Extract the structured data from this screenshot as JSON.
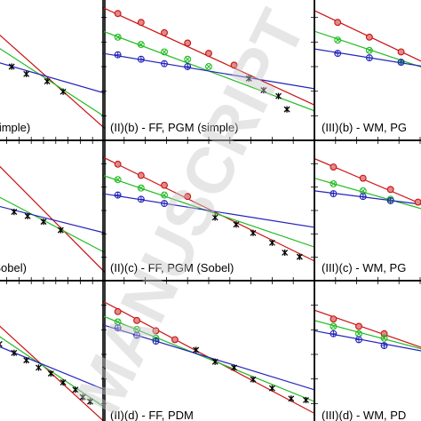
{
  "watermark": {
    "text": "MANUSCRIPT",
    "color": "#c8c8c8"
  },
  "colors": {
    "red": "#cc1111",
    "green": "#22bb22",
    "blue": "#2222bb",
    "black": "#000000"
  },
  "chart_data": [
    {
      "type": "line",
      "label": "(simple)",
      "log_scale": true,
      "xlim": [
        0,
        10
      ],
      "ylim": [
        0,
        10
      ],
      "series": [
        {
          "color": "red",
          "line": [
            [
              0,
              8.2
            ],
            [
              10,
              0.8
            ]
          ],
          "markers": []
        },
        {
          "color": "green",
          "line": [
            [
              0,
              7.0
            ],
            [
              10,
              1.6
            ]
          ],
          "markers": []
        },
        {
          "color": "blue",
          "line": [
            [
              0,
              5.6
            ],
            [
              10,
              3.2
            ]
          ],
          "markers": []
        },
        {
          "color": "black",
          "line": [],
          "markers": [
            [
              1.2,
              5.4
            ],
            [
              2.4,
              5.0
            ],
            [
              3.6,
              4.5
            ],
            [
              5.3,
              4.0
            ],
            [
              6.6,
              3.3
            ]
          ]
        }
      ]
    },
    {
      "type": "line",
      "label": "(II)(b) - FF, PGM (simple)",
      "log_scale": true,
      "xlim": [
        0,
        10
      ],
      "ylim": [
        0,
        10
      ],
      "series": [
        {
          "color": "red",
          "line": [
            [
              0,
              9.0
            ],
            [
              10,
              2.4
            ]
          ],
          "markers": [
            [
              0.7,
              8.6
            ],
            [
              1.8,
              8.0
            ],
            [
              2.9,
              7.3
            ],
            [
              4.0,
              6.6
            ],
            [
              5.0,
              5.9
            ],
            [
              6.2,
              5.1
            ]
          ]
        },
        {
          "color": "green",
          "line": [
            [
              0,
              7.4
            ],
            [
              10,
              2.0
            ]
          ],
          "markers": [
            [
              0.7,
              7.0
            ],
            [
              1.8,
              6.5
            ],
            [
              2.9,
              6.0
            ],
            [
              4.0,
              5.5
            ],
            [
              5.0,
              5.0
            ]
          ]
        },
        {
          "color": "blue",
          "line": [
            [
              0,
              5.9
            ],
            [
              10,
              3.5
            ]
          ],
          "markers": [
            [
              0.7,
              5.8
            ],
            [
              1.8,
              5.5
            ],
            [
              2.9,
              5.2
            ],
            [
              4.0,
              5.0
            ]
          ]
        },
        {
          "color": "black",
          "line": [],
          "markers": [
            [
              6.9,
              4.2
            ],
            [
              7.6,
              3.4
            ],
            [
              8.3,
              3.0
            ],
            [
              8.7,
              2.1
            ]
          ]
        }
      ]
    },
    {
      "type": "line",
      "label": "(III)(b) - WM, PG",
      "log_scale": true,
      "xlim": [
        0,
        10
      ],
      "ylim": [
        0,
        10
      ],
      "series": [
        {
          "color": "red",
          "line": [
            [
              0,
              8.8
            ],
            [
              10,
              2.0
            ]
          ],
          "markers": [
            [
              1.1,
              8.0
            ],
            [
              2.6,
              7.0
            ],
            [
              4.1,
              6.0
            ],
            [
              5.6,
              5.0
            ]
          ]
        },
        {
          "color": "green",
          "line": [
            [
              0,
              7.4
            ],
            [
              10,
              2.6
            ]
          ],
          "markers": [
            [
              1.1,
              6.8
            ],
            [
              2.6,
              6.1
            ],
            [
              4.1,
              5.3
            ]
          ]
        },
        {
          "color": "blue",
          "line": [
            [
              0,
              6.2
            ],
            [
              10,
              3.9
            ]
          ],
          "markers": [
            [
              1.1,
              5.9
            ],
            [
              2.6,
              5.6
            ],
            [
              4.1,
              5.3
            ]
          ]
        },
        {
          "color": "black",
          "line": [],
          "markers": []
        }
      ]
    },
    {
      "type": "line",
      "label": "(Sobel)",
      "log_scale": true,
      "xlim": [
        0,
        10
      ],
      "ylim": [
        0,
        10
      ],
      "series": [
        {
          "color": "red",
          "line": [
            [
              0,
              9.4
            ],
            [
              10,
              0.6
            ]
          ],
          "markers": []
        },
        {
          "color": "green",
          "line": [
            [
              0,
              6.6
            ],
            [
              10,
              2.0
            ]
          ],
          "markers": []
        },
        {
          "color": "blue",
          "line": [
            [
              0,
              5.6
            ],
            [
              10,
              3.4
            ]
          ],
          "markers": []
        },
        {
          "color": "black",
          "line": [],
          "markers": [
            [
              1.2,
              5.1
            ],
            [
              2.6,
              4.9
            ],
            [
              3.7,
              4.6
            ],
            [
              5.0,
              4.2
            ],
            [
              6.4,
              3.6
            ]
          ]
        }
      ]
    },
    {
      "type": "line",
      "label": "(II)(c) - FF, PGM (Sobel)",
      "log_scale": true,
      "xlim": [
        0,
        10
      ],
      "ylim": [
        0,
        10
      ],
      "series": [
        {
          "color": "red",
          "line": [
            [
              0,
              8.8
            ],
            [
              10,
              1.4
            ]
          ],
          "markers": [
            [
              0.7,
              8.3
            ],
            [
              1.8,
              7.5
            ],
            [
              2.9,
              6.8
            ],
            [
              4.0,
              6.0
            ]
          ]
        },
        {
          "color": "green",
          "line": [
            [
              0,
              7.5
            ],
            [
              10,
              2.4
            ]
          ],
          "markers": [
            [
              0.7,
              7.2
            ],
            [
              1.8,
              6.6
            ],
            [
              2.9,
              6.1
            ]
          ]
        },
        {
          "color": "blue",
          "line": [
            [
              0,
              6.2
            ],
            [
              10,
              3.8
            ]
          ],
          "markers": [
            [
              0.7,
              6.1
            ],
            [
              1.8,
              5.8
            ],
            [
              2.9,
              5.5
            ]
          ]
        },
        {
          "color": "black",
          "line": [],
          "markers": [
            [
              5.3,
              4.5
            ],
            [
              6.3,
              4.0
            ],
            [
              7.1,
              3.4
            ],
            [
              8.0,
              2.7
            ],
            [
              8.6,
              2.0
            ],
            [
              9.3,
              1.7
            ]
          ]
        }
      ]
    },
    {
      "type": "line",
      "label": "(III)(c) - WM, PG",
      "log_scale": true,
      "xlim": [
        0,
        10
      ],
      "ylim": [
        0,
        10
      ],
      "series": [
        {
          "color": "red",
          "line": [
            [
              0,
              8.7
            ],
            [
              10,
              2.3
            ]
          ],
          "markers": [
            [
              0.9,
              8.1
            ],
            [
              2.3,
              7.3
            ],
            [
              3.6,
              6.5
            ],
            [
              4.9,
              5.6
            ]
          ]
        },
        {
          "color": "green",
          "line": [
            [
              0,
              7.3
            ],
            [
              10,
              3.0
            ]
          ],
          "markers": [
            [
              0.9,
              6.9
            ],
            [
              2.3,
              6.4
            ],
            [
              3.6,
              5.8
            ]
          ]
        },
        {
          "color": "blue",
          "line": [
            [
              0,
              6.4
            ],
            [
              10,
              4.5
            ]
          ],
          "markers": [
            [
              0.9,
              6.2
            ],
            [
              2.3,
              6.0
            ],
            [
              3.6,
              5.7
            ]
          ]
        },
        {
          "color": "black",
          "line": [],
          "markers": []
        }
      ]
    },
    {
      "type": "line",
      "label": "",
      "log_scale": true,
      "xlim": [
        0,
        10
      ],
      "ylim": [
        0,
        10
      ],
      "series": [
        {
          "color": "red",
          "line": [
            [
              0,
              8.0
            ],
            [
              10,
              0.4
            ]
          ],
          "markers": []
        },
        {
          "color": "green",
          "line": [
            [
              0,
              7.0
            ],
            [
              10,
              1.4
            ]
          ],
          "markers": []
        },
        {
          "color": "blue",
          "line": [
            [
              0,
              6.0
            ],
            [
              10,
              2.6
            ]
          ],
          "markers": []
        },
        {
          "color": "black",
          "line": [],
          "markers": [
            [
              1.4,
              5.7
            ],
            [
              2.6,
              5.1
            ],
            [
              3.6,
              4.6
            ],
            [
              4.6,
              4.1
            ],
            [
              5.6,
              3.7
            ],
            [
              6.6,
              3.1
            ],
            [
              7.6,
              2.6
            ],
            [
              8.2,
              2.1
            ],
            [
              8.8,
              1.8
            ]
          ]
        }
      ]
    },
    {
      "type": "line",
      "label": "(II)(d) - FF, PDM",
      "log_scale": true,
      "xlim": [
        0,
        10
      ],
      "ylim": [
        0,
        10
      ],
      "series": [
        {
          "color": "red",
          "line": [
            [
              0,
              8.6
            ],
            [
              10,
              1.0
            ]
          ],
          "markers": [
            [
              0.7,
              7.9
            ],
            [
              1.6,
              7.3
            ],
            [
              2.5,
              6.6
            ],
            [
              3.4,
              6.0
            ]
          ]
        },
        {
          "color": "green",
          "line": [
            [
              0,
              7.6
            ],
            [
              10,
              1.8
            ]
          ],
          "markers": [
            [
              0.7,
              7.2
            ],
            [
              1.6,
              6.7
            ],
            [
              2.5,
              6.1
            ]
          ]
        },
        {
          "color": "blue",
          "line": [
            [
              0,
              7.0
            ],
            [
              10,
              2.6
            ]
          ],
          "markers": [
            [
              0.7,
              6.8
            ],
            [
              1.6,
              6.3
            ],
            [
              2.5,
              5.9
            ]
          ]
        },
        {
          "color": "black",
          "line": [],
          "markers": [
            [
              4.4,
              5.3
            ],
            [
              5.3,
              4.5
            ],
            [
              6.2,
              4.1
            ],
            [
              7.1,
              3.3
            ],
            [
              8.0,
              2.7
            ],
            [
              8.9,
              2.0
            ],
            [
              9.6,
              1.9
            ]
          ]
        }
      ]
    },
    {
      "type": "line",
      "label": "(III)(d) - WM, PD",
      "log_scale": true,
      "xlim": [
        0,
        10
      ],
      "ylim": [
        0,
        10
      ],
      "series": [
        {
          "color": "red",
          "line": [
            [
              0,
              8.0
            ],
            [
              10,
              3.0
            ]
          ],
          "markers": [
            [
              0.9,
              7.4
            ],
            [
              2.1,
              6.9
            ],
            [
              3.3,
              6.4
            ]
          ]
        },
        {
          "color": "green",
          "line": [
            [
              0,
              7.3
            ],
            [
              10,
              3.5
            ]
          ],
          "markers": [
            [
              0.9,
              6.9
            ],
            [
              2.1,
              6.4
            ],
            [
              3.3,
              6.1
            ]
          ]
        },
        {
          "color": "blue",
          "line": [
            [
              0,
              6.6
            ],
            [
              10,
              3.9
            ]
          ],
          "markers": [
            [
              0.9,
              6.4
            ],
            [
              2.1,
              6.0
            ],
            [
              3.3,
              5.6
            ]
          ]
        },
        {
          "color": "black",
          "line": [],
          "markers": []
        }
      ]
    }
  ]
}
